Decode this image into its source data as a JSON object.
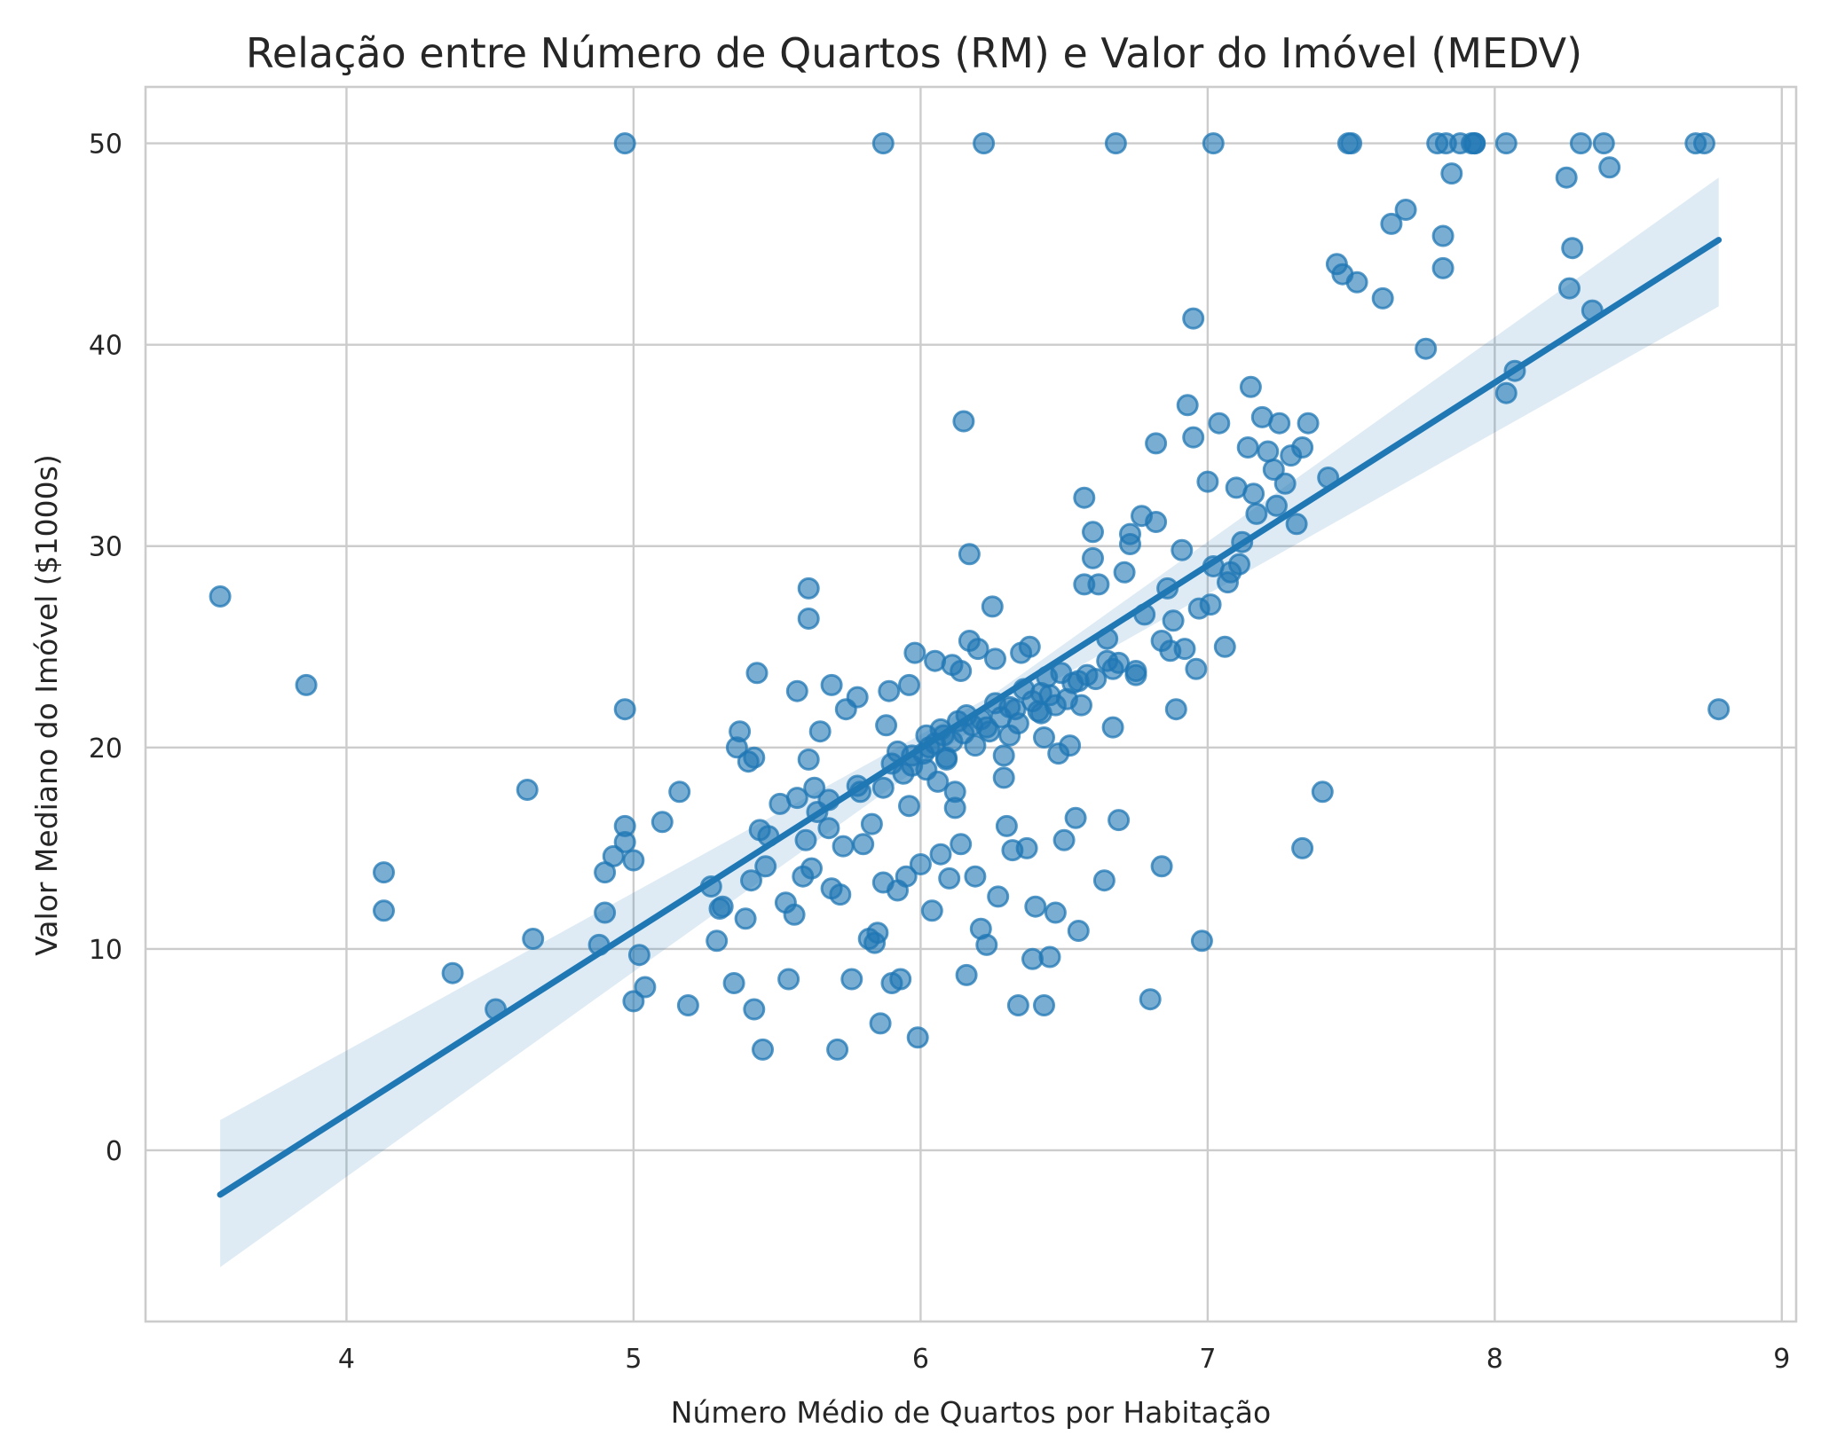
{
  "chart_data": {
    "type": "scatter",
    "title": "Relação entre Número de Quartos (RM) e Valor do Imóvel (MEDV)",
    "xlabel": "Número Médio de Quartos por Habitação",
    "ylabel": "Valor Mediano do Imóvel ($1000s)",
    "xlim": [
      3.3,
      9.05
    ],
    "ylim": [
      -8.5,
      52.8
    ],
    "xticks": [
      4,
      5,
      6,
      7,
      8,
      9
    ],
    "yticks": [
      0,
      10,
      20,
      30,
      40,
      50
    ],
    "grid": true,
    "colors": {
      "points": "#1f77b4",
      "line": "#1f77b4",
      "band": "#1f77b4",
      "grid": "#cccccc"
    },
    "points": {
      "x": [
        3.56,
        3.86,
        4.13,
        4.13,
        4.37,
        4.52,
        4.63,
        4.65,
        4.88,
        4.9,
        4.9,
        4.93,
        4.97,
        4.97,
        4.97,
        5.0,
        5.0,
        5.02,
        5.04,
        5.1,
        5.16,
        5.19,
        5.27,
        5.29,
        5.3,
        5.35,
        5.36,
        5.37,
        5.39,
        5.4,
        5.41,
        5.42,
        5.43,
        5.45,
        5.46,
        5.47,
        5.53,
        5.54,
        5.56,
        5.57,
        5.59,
        5.6,
        5.61,
        5.62,
        5.63,
        5.65,
        5.68,
        5.69,
        5.71,
        5.72,
        5.74,
        5.76,
        5.78,
        5.8,
        5.82,
        5.84,
        5.85,
        5.86,
        5.87,
        5.88,
        5.89,
        5.9,
        5.92,
        5.93,
        5.95,
        5.96,
        5.98,
        5.99,
        6.0,
        6.02,
        6.04,
        6.05,
        6.07,
        6.09,
        6.1,
        6.11,
        6.12,
        6.14,
        6.15,
        6.16,
        6.17,
        6.19,
        6.2,
        6.21,
        6.23,
        6.25,
        6.27,
        6.29,
        6.3,
        6.32,
        6.34,
        6.35,
        6.37,
        6.39,
        6.4,
        6.42,
        6.43,
        6.45,
        6.47,
        6.48,
        6.5,
        6.52,
        6.54,
        6.55,
        6.57,
        6.58,
        6.6,
        6.62,
        6.64,
        6.65,
        6.67,
        6.69,
        6.71,
        6.73,
        6.75,
        6.77,
        6.78,
        6.8,
        6.82,
        6.84,
        6.86,
        6.87,
        6.89,
        6.91,
        6.93,
        6.95,
        6.96,
        6.98,
        7.0,
        7.02,
        7.04,
        7.06,
        7.08,
        7.1,
        7.12,
        7.14,
        7.15,
        7.17,
        7.19,
        7.21,
        7.23,
        7.25,
        7.27,
        7.29,
        7.31,
        7.33,
        7.35,
        7.4,
        7.42,
        7.45,
        7.47,
        7.5,
        7.52,
        7.61,
        7.64,
        7.69,
        7.76,
        7.82,
        7.82,
        7.85,
        7.93,
        8.04,
        8.07,
        8.25,
        8.26,
        8.27,
        8.34,
        8.4,
        4.97,
        5.87,
        6.22,
        6.68,
        7.02,
        7.49,
        7.8,
        7.83,
        7.88,
        7.92,
        7.93,
        8.04,
        8.3,
        8.38,
        8.7,
        8.73,
        8.78,
        5.61,
        5.61,
        5.42,
        5.57,
        5.69,
        6.14,
        6.17,
        6.26,
        6.38,
        6.49,
        6.57,
        6.6,
        6.65,
        6.73,
        6.82,
        6.97,
        7.07,
        7.16,
        7.24,
        7.33,
        6.95,
        6.56,
        6.43,
        6.29,
        6.12,
        5.96,
        5.83,
        5.73,
        5.64,
        5.51,
        5.44,
        5.31,
        6.08,
        6.18,
        6.33,
        6.45,
        6.61,
        6.75,
        6.92,
        6.53,
        6.31,
        6.09,
        5.94,
        5.78,
        6.21,
        6.39,
        6.67,
        6.84,
        7.01,
        6.05,
        5.92,
        6.13,
        6.26,
        6.36,
        6.44,
        6.02,
        5.87,
        5.97,
        6.24,
        6.41,
        6.51,
        6.69,
        6.88,
        7.11,
        5.68,
        5.79,
        6.06,
        6.19,
        6.34,
        6.47,
        6.01,
        5.9,
        6.15,
        6.28,
        6.03,
        5.97,
        6.11,
        6.23,
        6.07,
        6.16,
        6.31,
        6.42,
        6.55
      ],
      "y": [
        27.5,
        23.1,
        13.8,
        11.9,
        8.8,
        7.0,
        17.9,
        10.5,
        10.2,
        13.8,
        11.8,
        14.6,
        21.9,
        16.1,
        15.3,
        7.4,
        14.4,
        9.7,
        8.1,
        16.3,
        17.8,
        7.2,
        13.1,
        10.4,
        12.0,
        8.3,
        20.0,
        20.8,
        11.5,
        19.3,
        13.4,
        7.0,
        23.7,
        5.0,
        14.1,
        15.6,
        12.3,
        8.5,
        11.7,
        17.5,
        13.6,
        15.4,
        19.4,
        14.0,
        18.0,
        20.8,
        16.0,
        13.0,
        5.0,
        12.7,
        21.9,
        8.5,
        22.5,
        15.2,
        10.5,
        10.3,
        10.8,
        6.3,
        13.3,
        21.1,
        22.8,
        8.3,
        12.9,
        8.5,
        13.6,
        23.1,
        24.7,
        5.6,
        14.2,
        20.6,
        11.9,
        24.3,
        14.7,
        19.4,
        13.5,
        24.1,
        17.0,
        15.2,
        36.2,
        8.7,
        29.6,
        13.6,
        24.9,
        11.0,
        10.2,
        27.0,
        12.6,
        18.5,
        16.1,
        14.9,
        7.2,
        24.7,
        15.0,
        9.5,
        12.1,
        21.7,
        7.2,
        9.6,
        11.8,
        19.7,
        15.4,
        20.1,
        16.5,
        10.9,
        32.4,
        23.6,
        30.7,
        28.1,
        13.4,
        24.3,
        21.0,
        16.4,
        28.7,
        30.1,
        23.6,
        31.5,
        26.6,
        7.5,
        35.1,
        14.1,
        27.9,
        24.8,
        21.9,
        29.8,
        37.0,
        35.4,
        23.9,
        10.4,
        33.2,
        29.0,
        36.1,
        25.0,
        28.7,
        32.9,
        30.2,
        34.9,
        37.9,
        31.6,
        36.4,
        34.7,
        33.8,
        36.1,
        33.1,
        34.5,
        31.1,
        15.0,
        36.1,
        17.8,
        33.4,
        44.0,
        43.5,
        50.0,
        43.1,
        42.3,
        46.0,
        46.7,
        39.8,
        45.4,
        43.8,
        48.5,
        50.0,
        37.6,
        38.7,
        48.3,
        42.8,
        44.8,
        41.7,
        48.8,
        50.0,
        50.0,
        50.0,
        50.0,
        50.0,
        50.0,
        50.0,
        50.0,
        50.0,
        50.0,
        50.0,
        50.0,
        50.0,
        50.0,
        50.0,
        50.0,
        21.9,
        27.9,
        26.4,
        19.5,
        22.8,
        23.1,
        23.8,
        25.3,
        24.4,
        25.0,
        23.7,
        28.1,
        29.4,
        25.4,
        30.6,
        31.2,
        26.9,
        28.2,
        32.6,
        32.0,
        34.9,
        41.3,
        22.1,
        20.5,
        19.6,
        17.8,
        17.1,
        16.2,
        15.1,
        16.8,
        17.2,
        15.9,
        12.1,
        20.6,
        21.1,
        21.9,
        22.6,
        23.4,
        23.8,
        24.9,
        23.2,
        20.6,
        19.5,
        18.7,
        18.1,
        21.4,
        22.3,
        23.9,
        25.3,
        27.1,
        20.2,
        19.8,
        21.3,
        22.2,
        22.9,
        23.5,
        18.9,
        18.0,
        19.1,
        20.8,
        21.8,
        22.4,
        24.2,
        26.3,
        29.1,
        17.4,
        17.8,
        18.3,
        20.1,
        21.2,
        22.1,
        19.7,
        19.2,
        20.7,
        21.5,
        20.0,
        19.6,
        20.3,
        21.0,
        20.9,
        21.6,
        22.0,
        22.7,
        23.3
      ]
    },
    "regression": {
      "x": [
        3.56,
        8.78
      ],
      "y": [
        -2.2,
        45.2
      ],
      "ci": [
        {
          "x": 3.56,
          "lower": -5.8,
          "upper": 1.5
        },
        {
          "x": 6.25,
          "lower": 21.6,
          "upper": 22.6
        },
        {
          "x": 8.78,
          "lower": 41.9,
          "upper": 48.3
        }
      ]
    }
  }
}
